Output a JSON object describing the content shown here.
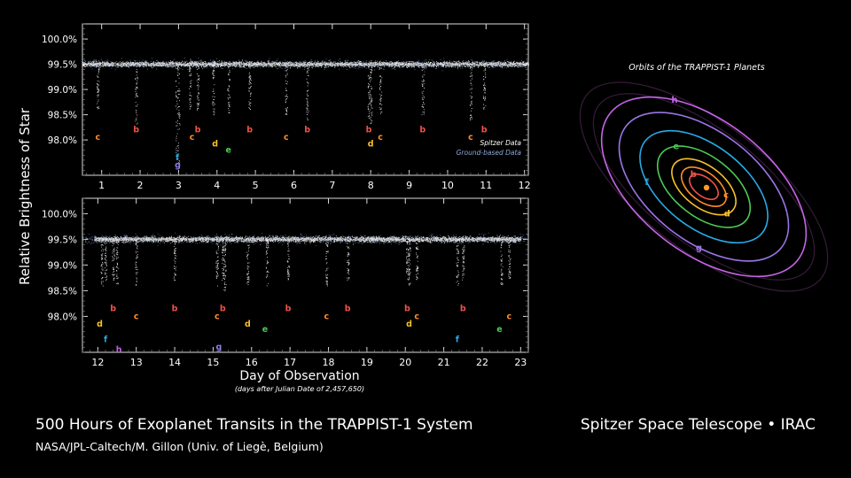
{
  "footer": {
    "title": "500 Hours of Exoplanet Transits in the TRAPPIST-1 System",
    "credit": "NASA/JPL-Caltech/M. Gillon (Univ. of Liegè, Belgium)",
    "instrument": "Spitzer Space Telescope • IRAC"
  },
  "chart_data": [
    {
      "type": "scatter",
      "panel": "top",
      "ylabel": "Relative Brightness of Star",
      "xlim": [
        0.5,
        12.1
      ],
      "ylim": [
        97.3,
        100.3
      ],
      "xticks": [
        1,
        2,
        3,
        4,
        5,
        6,
        7,
        8,
        9,
        10,
        11,
        12
      ],
      "yticks": [
        100.0,
        99.5,
        99.0,
        98.5,
        98.0
      ],
      "ytick_labels": [
        "100.0%",
        "99.5%",
        "99.0%",
        "98.5%",
        "98.0%"
      ],
      "baseline": 99.5,
      "legend": {
        "placement": "bottom-right",
        "entries": [
          {
            "name": "Spitzer Data",
            "color": "#ffffff"
          },
          {
            "name": "Ground-based Data",
            "color": "#8fa9d6"
          }
        ]
      },
      "series": [
        {
          "name": "Spitzer Data",
          "color": "#ffffff",
          "x_range": [
            0.5,
            12.1
          ],
          "baseline": 99.5
        },
        {
          "name": "Ground-based Data",
          "color": "#8fa9d6",
          "x_range": [
            0.5,
            12.1
          ],
          "baseline": 99.5
        }
      ],
      "transits": [
        {
          "x": 0.9,
          "depth": 98.6,
          "planet": "c"
        },
        {
          "x": 1.9,
          "depth": 98.3,
          "planet": "b"
        },
        {
          "x": 2.95,
          "depth": 97.5,
          "planet": "f"
        },
        {
          "x": 3.0,
          "depth": 97.5,
          "planet": "g"
        },
        {
          "x": 3.3,
          "depth": 98.6,
          "planet": "c"
        },
        {
          "x": 3.5,
          "depth": 98.6,
          "planet": "b"
        },
        {
          "x": 3.9,
          "depth": 98.5,
          "planet": "d"
        },
        {
          "x": 4.3,
          "depth": 98.5,
          "planet": "e"
        },
        {
          "x": 4.85,
          "depth": 98.6,
          "planet": "b"
        },
        {
          "x": 5.8,
          "depth": 98.5,
          "planet": "c"
        },
        {
          "x": 6.35,
          "depth": 98.4,
          "planet": "b"
        },
        {
          "x": 7.95,
          "depth": 98.4,
          "planet": "b"
        },
        {
          "x": 8.0,
          "depth": 98.3,
          "planet": "d"
        },
        {
          "x": 8.25,
          "depth": 98.5,
          "planet": "c"
        },
        {
          "x": 9.35,
          "depth": 98.5,
          "planet": "b"
        },
        {
          "x": 10.6,
          "depth": 98.4,
          "planet": "c"
        },
        {
          "x": 10.95,
          "depth": 98.6,
          "planet": "b"
        }
      ],
      "markers": [
        {
          "x": 0.9,
          "y": 98.0,
          "planet": "c"
        },
        {
          "x": 1.9,
          "y": 98.15,
          "planet": "b"
        },
        {
          "x": 2.97,
          "y": 97.6,
          "planet": "f"
        },
        {
          "x": 2.98,
          "y": 97.45,
          "planet": "g"
        },
        {
          "x": 3.35,
          "y": 98.0,
          "planet": "c"
        },
        {
          "x": 3.5,
          "y": 98.15,
          "planet": "b"
        },
        {
          "x": 3.95,
          "y": 97.87,
          "planet": "d"
        },
        {
          "x": 4.3,
          "y": 97.75,
          "planet": "e"
        },
        {
          "x": 4.85,
          "y": 98.15,
          "planet": "b"
        },
        {
          "x": 5.8,
          "y": 98.0,
          "planet": "c"
        },
        {
          "x": 6.35,
          "y": 98.15,
          "planet": "b"
        },
        {
          "x": 7.95,
          "y": 98.15,
          "planet": "b"
        },
        {
          "x": 8.0,
          "y": 97.87,
          "planet": "d"
        },
        {
          "x": 8.25,
          "y": 98.0,
          "planet": "c"
        },
        {
          "x": 9.35,
          "y": 98.15,
          "planet": "b"
        },
        {
          "x": 10.6,
          "y": 98.0,
          "planet": "c"
        },
        {
          "x": 10.95,
          "y": 98.15,
          "planet": "b"
        }
      ]
    },
    {
      "type": "scatter",
      "panel": "bottom",
      "xlabel": "Day of Observation",
      "xsublabel": "(days after Julian Date of 2,457,650)",
      "xlim": [
        11.6,
        23.2
      ],
      "ylim": [
        97.3,
        100.3
      ],
      "xticks": [
        12,
        13,
        14,
        15,
        16,
        17,
        18,
        19,
        20,
        21,
        22,
        23
      ],
      "yticks": [
        100.0,
        99.5,
        99.0,
        98.5,
        98.0
      ],
      "ytick_labels": [
        "100.0%",
        "99.5%",
        "99.0%",
        "98.5%",
        "98.0%"
      ],
      "baseline": 99.5,
      "series": [
        {
          "name": "Spitzer Data",
          "color": "#ffffff",
          "x_range": [
            11.9,
            23.0
          ],
          "baseline": 99.5
        },
        {
          "name": "Ground-based Data",
          "color": "#8fa9d6",
          "x_range": [
            11.6,
            23.2
          ],
          "baseline": 99.5
        }
      ],
      "transits": [
        {
          "x": 12.1,
          "depth": 98.6,
          "planet": "d"
        },
        {
          "x": 12.4,
          "depth": 98.7,
          "planet": "b"
        },
        {
          "x": 12.5,
          "depth": 98.6,
          "planet": "h"
        },
        {
          "x": 12.2,
          "depth": 98.7,
          "planet": "f"
        },
        {
          "x": 13.0,
          "depth": 98.6,
          "planet": "c"
        },
        {
          "x": 14.0,
          "depth": 98.7,
          "planet": "b"
        },
        {
          "x": 15.1,
          "depth": 98.6,
          "planet": "c"
        },
        {
          "x": 15.25,
          "depth": 98.7,
          "planet": "b"
        },
        {
          "x": 15.3,
          "depth": 98.5,
          "planet": "g"
        },
        {
          "x": 15.9,
          "depth": 98.6,
          "planet": "d"
        },
        {
          "x": 16.4,
          "depth": 98.6,
          "planet": "e"
        },
        {
          "x": 16.95,
          "depth": 98.7,
          "planet": "b"
        },
        {
          "x": 17.95,
          "depth": 98.6,
          "planet": "c"
        },
        {
          "x": 18.5,
          "depth": 98.7,
          "planet": "b"
        },
        {
          "x": 20.1,
          "depth": 98.6,
          "planet": "d"
        },
        {
          "x": 20.05,
          "depth": 98.7,
          "planet": "b"
        },
        {
          "x": 20.3,
          "depth": 98.6,
          "planet": "c"
        },
        {
          "x": 21.5,
          "depth": 98.7,
          "planet": "b"
        },
        {
          "x": 21.35,
          "depth": 98.6,
          "planet": "f"
        },
        {
          "x": 22.5,
          "depth": 98.6,
          "planet": "e"
        },
        {
          "x": 22.7,
          "depth": 98.7,
          "planet": "c"
        }
      ],
      "markers": [
        {
          "x": 12.05,
          "y": 97.8,
          "planet": "d"
        },
        {
          "x": 12.4,
          "y": 98.1,
          "planet": "b"
        },
        {
          "x": 12.2,
          "y": 97.5,
          "planet": "f"
        },
        {
          "x": 12.55,
          "y": 97.3,
          "planet": "h"
        },
        {
          "x": 13.0,
          "y": 97.95,
          "planet": "c"
        },
        {
          "x": 14.0,
          "y": 98.1,
          "planet": "b"
        },
        {
          "x": 15.1,
          "y": 97.95,
          "planet": "c"
        },
        {
          "x": 15.25,
          "y": 98.1,
          "planet": "b"
        },
        {
          "x": 15.15,
          "y": 97.35,
          "planet": "g"
        },
        {
          "x": 15.9,
          "y": 97.8,
          "planet": "d"
        },
        {
          "x": 16.35,
          "y": 97.7,
          "planet": "e"
        },
        {
          "x": 16.95,
          "y": 98.1,
          "planet": "b"
        },
        {
          "x": 17.95,
          "y": 97.95,
          "planet": "c"
        },
        {
          "x": 18.5,
          "y": 98.1,
          "planet": "b"
        },
        {
          "x": 20.05,
          "y": 98.1,
          "planet": "b"
        },
        {
          "x": 20.1,
          "y": 97.8,
          "planet": "d"
        },
        {
          "x": 20.3,
          "y": 97.95,
          "planet": "c"
        },
        {
          "x": 21.5,
          "y": 98.1,
          "planet": "b"
        },
        {
          "x": 21.35,
          "y": 97.5,
          "planet": "f"
        },
        {
          "x": 22.45,
          "y": 97.7,
          "planet": "e"
        },
        {
          "x": 22.7,
          "y": 97.95,
          "planet": "c"
        }
      ]
    }
  ],
  "orbits_diagram": {
    "title": "Orbits of the TRAPPIST-1 Planets",
    "star_color": "#ff9b2e",
    "planets": [
      {
        "label": "b",
        "color": "#f0524a",
        "rank": 1,
        "label_angle": 200
      },
      {
        "label": "c",
        "color": "#ff8c2a",
        "rank": 2,
        "label_angle": 330
      },
      {
        "label": "d",
        "color": "#f6c12b",
        "rank": 3,
        "label_angle": 20
      },
      {
        "label": "e",
        "color": "#4ccb55",
        "rank": 4,
        "label_angle": 210
      },
      {
        "label": "f",
        "color": "#29a9e6",
        "rank": 5,
        "label_angle": 130
      },
      {
        "label": "g",
        "color": "#9a74e6",
        "rank": 6,
        "label_angle": 70
      },
      {
        "label": "h",
        "color": "#c664e8",
        "rank": 7,
        "label_angle": 230
      }
    ]
  },
  "planet_colors": {
    "b": "#f0524a",
    "c": "#ff8c2a",
    "d": "#f6c12b",
    "e": "#4ccb55",
    "f": "#29a9e6",
    "g": "#8f7ce8",
    "h": "#c35ee6"
  }
}
